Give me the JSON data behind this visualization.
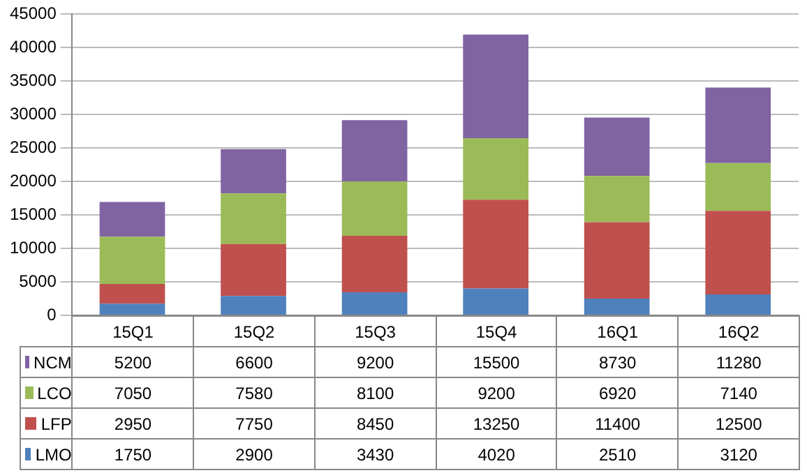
{
  "chart_data": {
    "type": "bar",
    "stacked": true,
    "categories": [
      "15Q1",
      "15Q2",
      "15Q3",
      "15Q4",
      "16Q1",
      "16Q2"
    ],
    "series": [
      {
        "name": "LMO",
        "color": "#4f81bd",
        "values": [
          1750,
          2900,
          3430,
          4020,
          2510,
          3120
        ]
      },
      {
        "name": "LFP",
        "color": "#c0504d",
        "values": [
          2950,
          7750,
          8450,
          13250,
          11400,
          12500
        ]
      },
      {
        "name": "LCO",
        "color": "#9bbb59",
        "values": [
          7050,
          7580,
          8100,
          9200,
          6920,
          7140
        ]
      },
      {
        "name": "NCM",
        "color": "#8064a2",
        "values": [
          5200,
          6600,
          9200,
          15500,
          8730,
          11280
        ]
      }
    ],
    "ylim": [
      0,
      45000
    ],
    "yticks": [
      0,
      5000,
      10000,
      15000,
      20000,
      25000,
      30000,
      35000,
      40000,
      45000
    ],
    "grid": "y",
    "legend": "bottom",
    "data_labels": true
  }
}
